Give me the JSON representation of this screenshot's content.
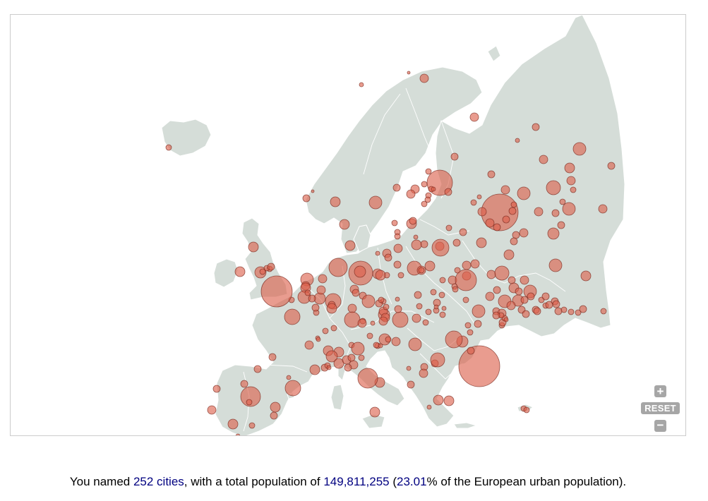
{
  "map": {
    "zoom_in_label": "+",
    "reset_label": "RESET",
    "zoom_out_label": "−",
    "land_color": "#d5ddd8",
    "city_color": "#dc5f4b"
  },
  "summary": {
    "prefix": "You named ",
    "cities": "252 cities",
    "mid": ", with a total population of ",
    "population": "149,811,255",
    "open_paren": " (",
    "percent": "23.01",
    "suffix": "% of the European urban population)."
  }
}
